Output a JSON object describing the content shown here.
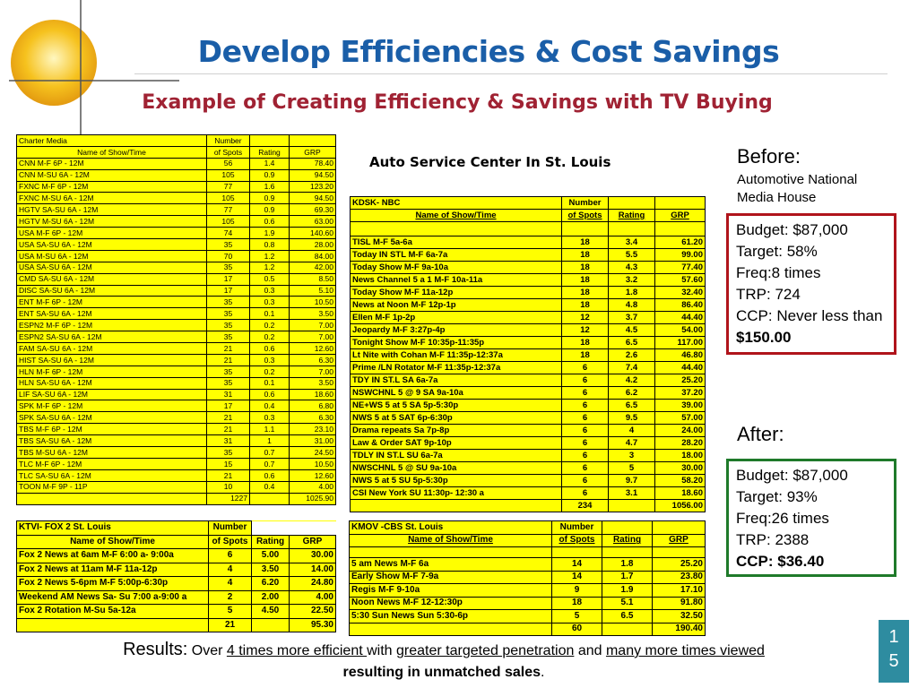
{
  "title": "Develop Efficiencies & Cost Savings",
  "subtitle": "Example of Creating Efficiency & Savings with TV Buying",
  "auto_title": "Auto Service Center In St. Louis",
  "table1": {
    "station": "Charter Media",
    "number_label": "Number",
    "headers": [
      "Name of Show/Time",
      "of Spots",
      "Rating",
      "GRP"
    ],
    "rows": [
      [
        "CNN M-F  6P - 12M",
        "56",
        "1.4",
        "78.40"
      ],
      [
        "CNN M-SU 6A - 12M",
        "105",
        "0.9",
        "94.50"
      ],
      [
        "FXNC M-F 6P - 12M",
        "77",
        "1.6",
        "123.20"
      ],
      [
        "FXNC M-SU 6A - 12M",
        "105",
        "0.9",
        "94.50"
      ],
      [
        "HGTV SA-SU 6A - 12M",
        "77",
        "0.9",
        "69.30"
      ],
      [
        "HGTV M-SU 6A - 12M",
        "105",
        "0.6",
        "63.00"
      ],
      [
        "USA M-F 6P - 12M",
        "74",
        "1.9",
        "140.60"
      ],
      [
        "USA SA-SU 6A - 12M",
        "35",
        "0.8",
        "28.00"
      ],
      [
        "USA M-SU 6A - 12M",
        "70",
        "1.2",
        "84.00"
      ],
      [
        "USA SA-SU 6A - 12M",
        "35",
        "1.2",
        "42.00"
      ],
      [
        "CMD SA-SU 6A - 12M",
        "17",
        "0.5",
        "8.50"
      ],
      [
        "DISC SA-SU 6A - 12M",
        "17",
        "0.3",
        "5.10"
      ],
      [
        "ENT M-F 6P - 12M",
        "35",
        "0.3",
        "10.50"
      ],
      [
        "ENT SA-SU 6A - 12M",
        "35",
        "0.1",
        "3.50"
      ],
      [
        "ESPN2 M-F 6P - 12M",
        "35",
        "0.2",
        "7.00"
      ],
      [
        "ESPN2 SA-SU 6A - 12M",
        "35",
        "0.2",
        "7.00"
      ],
      [
        "FAM SA-SU 6A - 12M",
        "21",
        "0.6",
        "12.60"
      ],
      [
        "HIST SA-SU 6A - 12M",
        "21",
        "0.3",
        "6.30"
      ],
      [
        "HLN M-F 6P - 12M",
        "35",
        "0.2",
        "7.00"
      ],
      [
        "HLN SA-SU 6A - 12M",
        "35",
        "0.1",
        "3.50"
      ],
      [
        "LIF SA-SU 6A - 12M",
        "31",
        "0.6",
        "18.60"
      ],
      [
        "SPK M-F 6P - 12M",
        "17",
        "0.4",
        "6.80"
      ],
      [
        "SPK SA-SU 6A - 12M",
        "21",
        "0.3",
        "6.30"
      ],
      [
        "TBS M-F 6P - 12M",
        "21",
        "1.1",
        "23.10"
      ],
      [
        "TBS SA-SU 6A - 12M",
        "31",
        "1",
        "31.00"
      ],
      [
        "TBS M-SU 6A - 12M",
        "35",
        "0.7",
        "24.50"
      ],
      [
        "TLC M-F 6P - 12M",
        "15",
        "0.7",
        "10.50"
      ],
      [
        "TLC SA-SU 6A - 12M",
        "21",
        "0.6",
        "12.60"
      ],
      [
        "TOON M-F 9P - 11P",
        "10",
        "0.4",
        "4.00"
      ]
    ],
    "total_spots": "1227",
    "total_grp": "1025.90"
  },
  "table2": {
    "station": "KDSK- NBC",
    "number_label": "Number",
    "headers": [
      "Name of Show/Time",
      "of Spots",
      "Rating",
      "GRP"
    ],
    "rows": [
      [
        "TISL  M-F 5a-6a",
        "18",
        "3.4",
        "61.20"
      ],
      [
        "Today IN STL  M-F 6a-7a",
        "18",
        "5.5",
        "99.00"
      ],
      [
        "Today Show  M-F 9a-10a",
        "18",
        "4.3",
        "77.40"
      ],
      [
        "News Channel 5 a 1  M-F 10a-11a",
        "18",
        "3.2",
        "57.60"
      ],
      [
        "Today Show M-F 11a-12p",
        "18",
        "1.8",
        "32.40"
      ],
      [
        "News at Noon M-F 12p-1p",
        "18",
        "4.8",
        "86.40"
      ],
      [
        "Ellen   M-F 1p-2p",
        "12",
        "3.7",
        "44.40"
      ],
      [
        "Jeopardy M-F 3:27p-4p",
        "12",
        "4.5",
        "54.00"
      ],
      [
        "Tonight Show  M-F  10:35p-11:35p",
        "18",
        "6.5",
        "117.00"
      ],
      [
        "Lt Nite with Cohan  M-F 11:35p-12:37a",
        "18",
        "2.6",
        "46.80"
      ],
      [
        "Prime /LN Rotator  M-F 11:35p-12:37a",
        "6",
        "7.4",
        "44.40"
      ],
      [
        "TDY IN ST.L  SA  6a-7a",
        "6",
        "4.2",
        "25.20"
      ],
      [
        "NSWCHNL 5 @ 9  SA 9a-10a",
        "6",
        "6.2",
        "37.20"
      ],
      [
        "NE+WS 5 at 5  SA 5p-5:30p",
        "6",
        "6.5",
        "39.00"
      ],
      [
        "NWS 5 at 5  SAT  6p-6:30p",
        "6",
        "9.5",
        "57.00"
      ],
      [
        "Drama repeats   Sa 7p-8p",
        "6",
        "4",
        "24.00"
      ],
      [
        "Law & Order  SAT  9p-10p",
        "6",
        "4.7",
        "28.20"
      ],
      [
        "TDLY IN ST.L  SU   6a-7a",
        "6",
        "3",
        "18.00"
      ],
      [
        "NWSCHNL 5 @ SU  9a-10a",
        "6",
        "5",
        "30.00"
      ],
      [
        "NWS 5 at 5  SU  5p-5:30p",
        "6",
        "9.7",
        "58.20"
      ],
      [
        "CSI  New York   SU  11:30p- 12:30 a",
        "6",
        "3.1",
        "18.60"
      ]
    ],
    "total_spots": "234",
    "total_grp": "1056.00"
  },
  "table3": {
    "station": "KTVI- FOX 2 St. Louis",
    "number_label": "Number",
    "headers": [
      "Name of Show/Time",
      "of Spots",
      "Rating",
      "GRP"
    ],
    "rows": [
      [
        "Fox 2 News at 6am  M-F 6:00 a- 9:00a",
        "6",
        "5.00",
        "30.00"
      ],
      [
        "Fox 2 News at 11am  M-F 11a-12p",
        "4",
        "3.50",
        "14.00"
      ],
      [
        "Fox 2 News 5-6pm  M-F 5:00p-6:30p",
        "4",
        "6.20",
        "24.80"
      ],
      [
        "Weekend AM News  Sa- Su 7:00 a-9:00 a",
        "2",
        "2.00",
        "4.00"
      ],
      [
        "Fox 2 Rotation  M-Su 5a-12a",
        "5",
        "4.50",
        "22.50"
      ]
    ],
    "total_spots": "21",
    "total_grp": "95.30"
  },
  "table4": {
    "station": "KMOV -CBS  St. Louis",
    "number_label": "Number",
    "headers": [
      "Name of Show/Time",
      "of Spots",
      "Rating",
      "GRP"
    ],
    "rows": [
      [
        "5 am News  M-F 6a",
        "14",
        "1.8",
        "25.20"
      ],
      [
        "Early Show  M-F 7-9a",
        "14",
        "1.7",
        "23.80"
      ],
      [
        "Regis  M-F 9-10a",
        "9",
        "1.9",
        "17.10"
      ],
      [
        "Noon News  M-F 12-12:30p",
        "18",
        "5.1",
        "91.80"
      ],
      [
        "5:30 Sun News  Sun 5:30-6p",
        "5",
        "6.5",
        "32.50"
      ]
    ],
    "total_spots": "60",
    "total_grp": "190.40"
  },
  "before": {
    "label": "Before:",
    "agency_line1": "Automotive National",
    "agency_line2": "Media House",
    "budget": "Budget: $87,000",
    "target": "Target: 58%",
    "freq": "Freq:8 times",
    "trp": "TRP: 724",
    "ccp_prefix": "CCP: Never less than ",
    "ccp_value": "$150.00"
  },
  "after": {
    "label": "After:",
    "budget": "Budget: $87,000",
    "target": "Target: 93%",
    "freq": "Freq:26 times",
    "trp": "TRP: 2388",
    "ccp": "CCP: $36.40"
  },
  "results": {
    "label": "Results:",
    "t1": " Over ",
    "u1": "4 times more efficient ",
    "t2": "with ",
    "u2": "greater targeted penetration",
    "t3": " and ",
    "u3": "many more times viewed",
    "line2": "resulting in unmatched sales",
    "end": "."
  },
  "page_number": [
    "1",
    "5"
  ],
  "colors": {
    "title": "#1a5ea8",
    "subtitle": "#a02233",
    "table_bg": "#ffff00",
    "before_border": "#b0141b",
    "after_border": "#1f7a2a",
    "badge": "#2e8ca0"
  }
}
